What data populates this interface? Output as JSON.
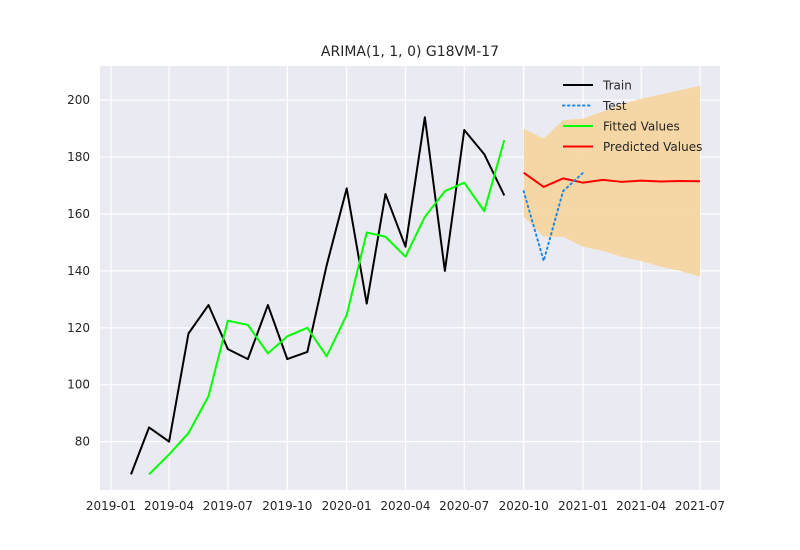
{
  "chart_data": {
    "type": "line",
    "title": "ARIMA(1, 1, 0) G18VM-17",
    "xlabel": "",
    "ylabel": "",
    "x_range": [
      "2018-12-15",
      "2021-08-01"
    ],
    "ylim": [
      63,
      212
    ],
    "x_ticks": [
      "2019-01",
      "2019-04",
      "2019-07",
      "2019-10",
      "2020-01",
      "2020-04",
      "2020-07",
      "2020-10",
      "2021-01",
      "2021-04",
      "2021-07"
    ],
    "y_ticks": [
      80,
      100,
      120,
      140,
      160,
      180,
      200
    ],
    "grid": true,
    "background": "#eaeaf2",
    "legend_position": "top-right",
    "series": [
      {
        "name": "Train",
        "color": "#000000",
        "style": "solid",
        "x": [
          "2019-02",
          "2019-03",
          "2019-04",
          "2019-05",
          "2019-06",
          "2019-07",
          "2019-08",
          "2019-09",
          "2019-10",
          "2019-11",
          "2019-12",
          "2020-01",
          "2020-02",
          "2020-03",
          "2020-04",
          "2020-05",
          "2020-06",
          "2020-07",
          "2020-08",
          "2020-09"
        ],
        "y": [
          68.5,
          85,
          80,
          118,
          128,
          112.5,
          109,
          128,
          109,
          111.5,
          142,
          169,
          128.5,
          167,
          148.5,
          194,
          140,
          189.5,
          181,
          166.5
        ]
      },
      {
        "name": "Test",
        "color": "#1e88e5",
        "style": "dotted",
        "x": [
          "2020-10",
          "2020-11",
          "2020-12",
          "2021-01"
        ],
        "y": [
          168,
          143.5,
          168,
          174.5
        ]
      },
      {
        "name": "Fitted Values",
        "color": "#00ff00",
        "style": "solid",
        "x": [
          "2019-03",
          "2019-04",
          "2019-05",
          "2019-06",
          "2019-07",
          "2019-08",
          "2019-09",
          "2019-10",
          "2019-11",
          "2019-12",
          "2020-01",
          "2020-02",
          "2020-03",
          "2020-04",
          "2020-05",
          "2020-06",
          "2020-07",
          "2020-08",
          "2020-09"
        ],
        "y": [
          68.5,
          75.5,
          83,
          96,
          122.5,
          121,
          111,
          117,
          120,
          110,
          124.5,
          153.5,
          152,
          145,
          159,
          168,
          171,
          161,
          186
        ]
      },
      {
        "name": "Predicted Values",
        "color": "#ff0000",
        "style": "solid",
        "x": [
          "2020-10",
          "2020-11",
          "2020-12",
          "2021-01",
          "2021-02",
          "2021-03",
          "2021-04",
          "2021-05",
          "2021-06",
          "2021-07"
        ],
        "y": [
          174.5,
          169.5,
          172.5,
          171,
          172,
          171.3,
          171.7,
          171.4,
          171.6,
          171.5
        ]
      }
    ],
    "confidence_band": {
      "color": "#f5d5a0",
      "x": [
        "2020-10",
        "2020-11",
        "2020-12",
        "2021-01",
        "2021-02",
        "2021-03",
        "2021-04",
        "2021-05",
        "2021-06",
        "2021-07"
      ],
      "lower": [
        159,
        152,
        152,
        148.5,
        147,
        145,
        143.5,
        141.5,
        140,
        138
      ],
      "upper": [
        190,
        186.5,
        193,
        193.5,
        196,
        198.5,
        200.5,
        202,
        203.5,
        205
      ]
    }
  }
}
